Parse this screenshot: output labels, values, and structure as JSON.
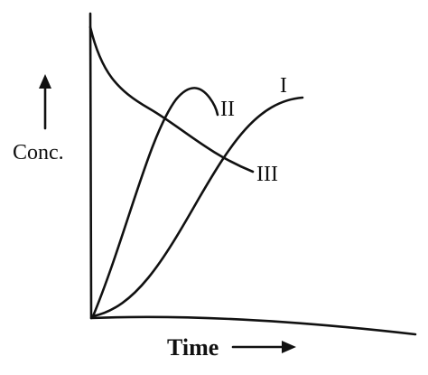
{
  "axes": {
    "y_label": "Conc.",
    "x_label": "Time"
  },
  "curves": [
    {
      "label": "I"
    },
    {
      "label": "II"
    },
    {
      "label": "III"
    }
  ]
}
